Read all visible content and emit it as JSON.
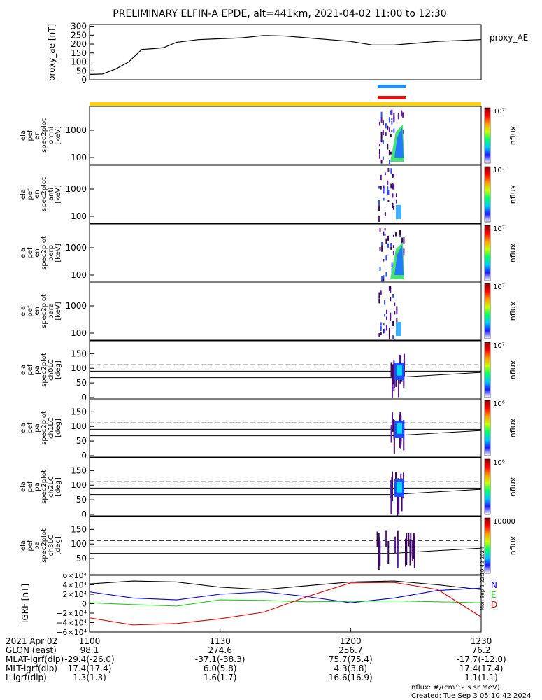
{
  "title": "PRELIMINARY ELFIN-A EPDE, alt=441km, 2021-04-02 11:00 to 12:30",
  "stamp": "Mon Sep  2 22:10:42 2024",
  "colors": {
    "ae_line": "#000000",
    "bar_blue": "#1e90ff",
    "bar_red": "#e01010",
    "bar_yellow": "#ffd700",
    "bx": "#0000dd",
    "by": "#22cc22",
    "bz": "#dd0000",
    "btotal": "#000000"
  },
  "chart_data": [
    {
      "type": "line",
      "name": "proxy_ae",
      "ylabel": "proxy_ae [nT]",
      "right_label": "proxy_AE",
      "yticks": [
        "0",
        "50",
        "100",
        "150",
        "200",
        "250",
        "300"
      ],
      "ylim": [
        0,
        310
      ],
      "x": [
        0,
        3,
        6,
        9,
        12,
        15,
        17,
        20,
        25,
        30,
        35,
        40,
        45,
        50,
        55,
        60,
        65,
        70,
        75,
        80,
        85,
        90
      ],
      "values": [
        30,
        32,
        60,
        100,
        170,
        175,
        180,
        210,
        225,
        230,
        235,
        248,
        245,
        235,
        225,
        215,
        195,
        195,
        205,
        215,
        220,
        225
      ]
    },
    {
      "type": "heatmap",
      "panels": [
        {
          "label": [
            "ela",
            "pef",
            "en",
            "spec2plot",
            "omni",
            "[keV]"
          ],
          "yticks": [
            "100",
            "1000"
          ],
          "ztick_top": "10⁷",
          "zlabel": "nflux"
        },
        {
          "label": [
            "ela",
            "pef",
            "en",
            "spec2plot",
            "anti",
            "[keV]"
          ],
          "yticks": [
            "100",
            "1000"
          ],
          "ztick_top": "10⁷",
          "zlabel": "nflux"
        },
        {
          "label": [
            "ela",
            "pef",
            "en",
            "spec2plot",
            "perp",
            "[keV]"
          ],
          "yticks": [
            "100",
            "1000"
          ],
          "ztick_top": "10⁷",
          "zlabel": "nflux"
        },
        {
          "label": [
            "ela",
            "pef",
            "en",
            "spec2plot",
            "para",
            "[keV]"
          ],
          "yticks": [
            "100",
            "1000"
          ],
          "ztick_top": "10⁷",
          "zlabel": "nflux"
        },
        {
          "label": [
            "ela",
            "pef",
            "pa",
            "spec2plot",
            "ch0LC",
            "[deg]"
          ],
          "yticks": [
            "0",
            "50",
            "100",
            "150"
          ],
          "ztick_top": "10⁷",
          "zlabel": "nflux"
        },
        {
          "label": [
            "ela",
            "pef",
            "pa",
            "spec2plot",
            "ch1LC",
            "[deg]"
          ],
          "yticks": [
            "0",
            "50",
            "100",
            "150"
          ],
          "ztick_top": "10⁶",
          "zlabel": "nflux"
        },
        {
          "label": [
            "ela",
            "pef",
            "pa",
            "spec2plot",
            "ch2LC",
            "[deg]"
          ],
          "yticks": [
            "0",
            "50",
            "100",
            "150"
          ],
          "ztick_top": "10⁶",
          "zlabel": "nflux"
        },
        {
          "label": [
            "ela",
            "pef",
            "pa",
            "spec2plot",
            "ch3LC",
            "[deg]"
          ],
          "yticks": [
            "50",
            "100",
            "150"
          ],
          "ztick_top": "10000",
          "zlabel": "nflux"
        }
      ]
    },
    {
      "type": "line",
      "name": "IGRF",
      "ylabel": "IGRF [nT]",
      "yticks": [
        "−6×10⁴",
        "−4×10⁴",
        "−2×10⁴",
        "0",
        "2×10⁴",
        "4×10⁴",
        "6×10⁴"
      ],
      "ylim": [
        -60000,
        60000
      ],
      "legend": [
        "N",
        "E",
        "D"
      ],
      "x": [
        0,
        10,
        20,
        30,
        40,
        50,
        60,
        70,
        80,
        90
      ],
      "series": [
        {
          "color": "#000000",
          "values": [
            42000,
            48000,
            46000,
            35000,
            30000,
            38000,
            46000,
            48000,
            40000,
            30000
          ]
        },
        {
          "color": "#0000dd",
          "values": [
            25000,
            12000,
            8000,
            20000,
            25000,
            15000,
            2000,
            12000,
            28000,
            33000
          ]
        },
        {
          "color": "#22cc22",
          "values": [
            2000,
            -2000,
            -5000,
            8000,
            7000,
            4000,
            5000,
            6000,
            4000,
            2000
          ]
        },
        {
          "color": "#dd0000",
          "values": [
            -30000,
            -45000,
            -42000,
            -32000,
            -18000,
            15000,
            44000,
            45000,
            30000,
            -28000
          ]
        }
      ]
    }
  ],
  "xaxis": {
    "date": "2021 Apr 02",
    "ticks": [
      "1100",
      "1130",
      "1200",
      "1230"
    ],
    "rows": [
      {
        "label": "GLON (east)",
        "values": [
          "98.1",
          "274.6",
          "256.7",
          "76.2"
        ]
      },
      {
        "label": "MLAT-igrf(dip)",
        "values": [
          "-29.4(-26.0)",
          "-37.1(-38.3)",
          "75.7(75.4)",
          "-17.7(-12.0)"
        ]
      },
      {
        "label": "MLT-igrf(dip)",
        "values": [
          "17.4(17.4)",
          "6.0(5.8)",
          "4.3(3.8)",
          "17.4(17.4)"
        ]
      },
      {
        "label": "L-igrf(dip)",
        "values": [
          "1.3(1.3)",
          "1.6(1.7)",
          "16.6(16.9)",
          "1.1(1.1)"
        ]
      }
    ]
  },
  "footer": {
    "units": "nflux: #/(cm^2 s sr MeV)",
    "created": "Created: Tue Sep  3 05:10:42 2024"
  }
}
